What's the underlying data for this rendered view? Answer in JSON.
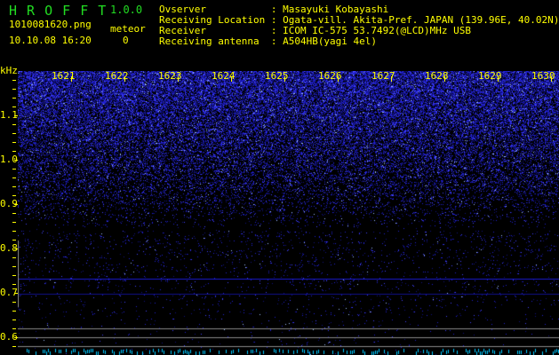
{
  "header": {
    "app_title": "H R O F F T",
    "version": "1.0.0",
    "filename": "1010081620.png",
    "datetime": "10.10.08 16:20",
    "meteor_label": "meteor",
    "meteor_count": "0"
  },
  "info": [
    {
      "label": "Ovserver           :",
      "value": "Masayuki Kobayashi"
    },
    {
      "label": "Receiving Location :",
      "value": "Ogata-vill. Akita-Pref. JAPAN (139.96E, 40.02N)"
    },
    {
      "label": "Receiver           :",
      "value": "ICOM IC-575 53.7492(@LCD)MHz USB"
    },
    {
      "label": "Receiving antenna  :",
      "value": "A504HB(yagi 4el)"
    }
  ],
  "spectrogram": {
    "y_unit": "kHz",
    "y_ticks": [
      "1.1",
      "1.0",
      "0.9",
      "0.8",
      "0.7",
      "0.6"
    ],
    "x_ticks": [
      "1621",
      "1622",
      "1623",
      "1624",
      "1625",
      "1626",
      "1627",
      "1628",
      "1629",
      "1630"
    ],
    "colors": {
      "noise": "#2020ff",
      "label": "#ffff00",
      "title": "#22dd22"
    }
  }
}
